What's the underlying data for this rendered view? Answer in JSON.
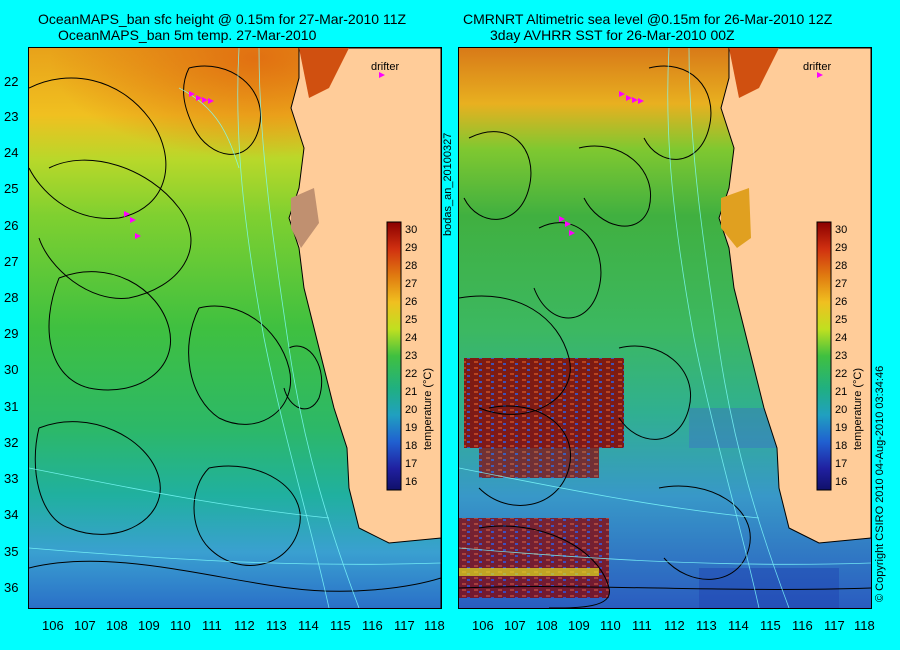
{
  "left": {
    "title_line1": "OceanMAPS_ban sfc height @ 0.15m for 27-Mar-2010 11Z",
    "title_line2": "OceanMAPS_ban 5m temp. 27-Mar-2010",
    "drifter_label": "drifter",
    "colorbar_label": "temperature (°C)"
  },
  "right": {
    "title_line1": "CMRNRT Altimetric sea level  @0.15m  for 26-Mar-2010 12Z",
    "title_line2": "3day AVHRR SST for 26-Mar-2010 00Z",
    "drifter_label": "drifter",
    "colorbar_label": "temperature (°C)"
  },
  "side_text_left": "bodas_an_20100327",
  "side_text_right": "© Copyright CSIRO 2010    04-Aug-2010 03:34:46",
  "lat_ticks": [
    "22",
    "23",
    "24",
    "25",
    "26",
    "27",
    "28",
    "29",
    "30",
    "31",
    "32",
    "33",
    "34",
    "35",
    "36"
  ],
  "lon_ticks": [
    "106",
    "107",
    "108",
    "109",
    "110",
    "111",
    "112",
    "113",
    "114",
    "115",
    "116",
    "117",
    "118"
  ],
  "colorbar_ticks": [
    "30",
    "29",
    "28",
    "27",
    "26",
    "25",
    "24",
    "23",
    "22",
    "21",
    "20",
    "19",
    "18",
    "17",
    "16"
  ],
  "colors": {
    "background": "#00ffff",
    "land": "#ffcc99",
    "drifter": "#ff00ff"
  }
}
